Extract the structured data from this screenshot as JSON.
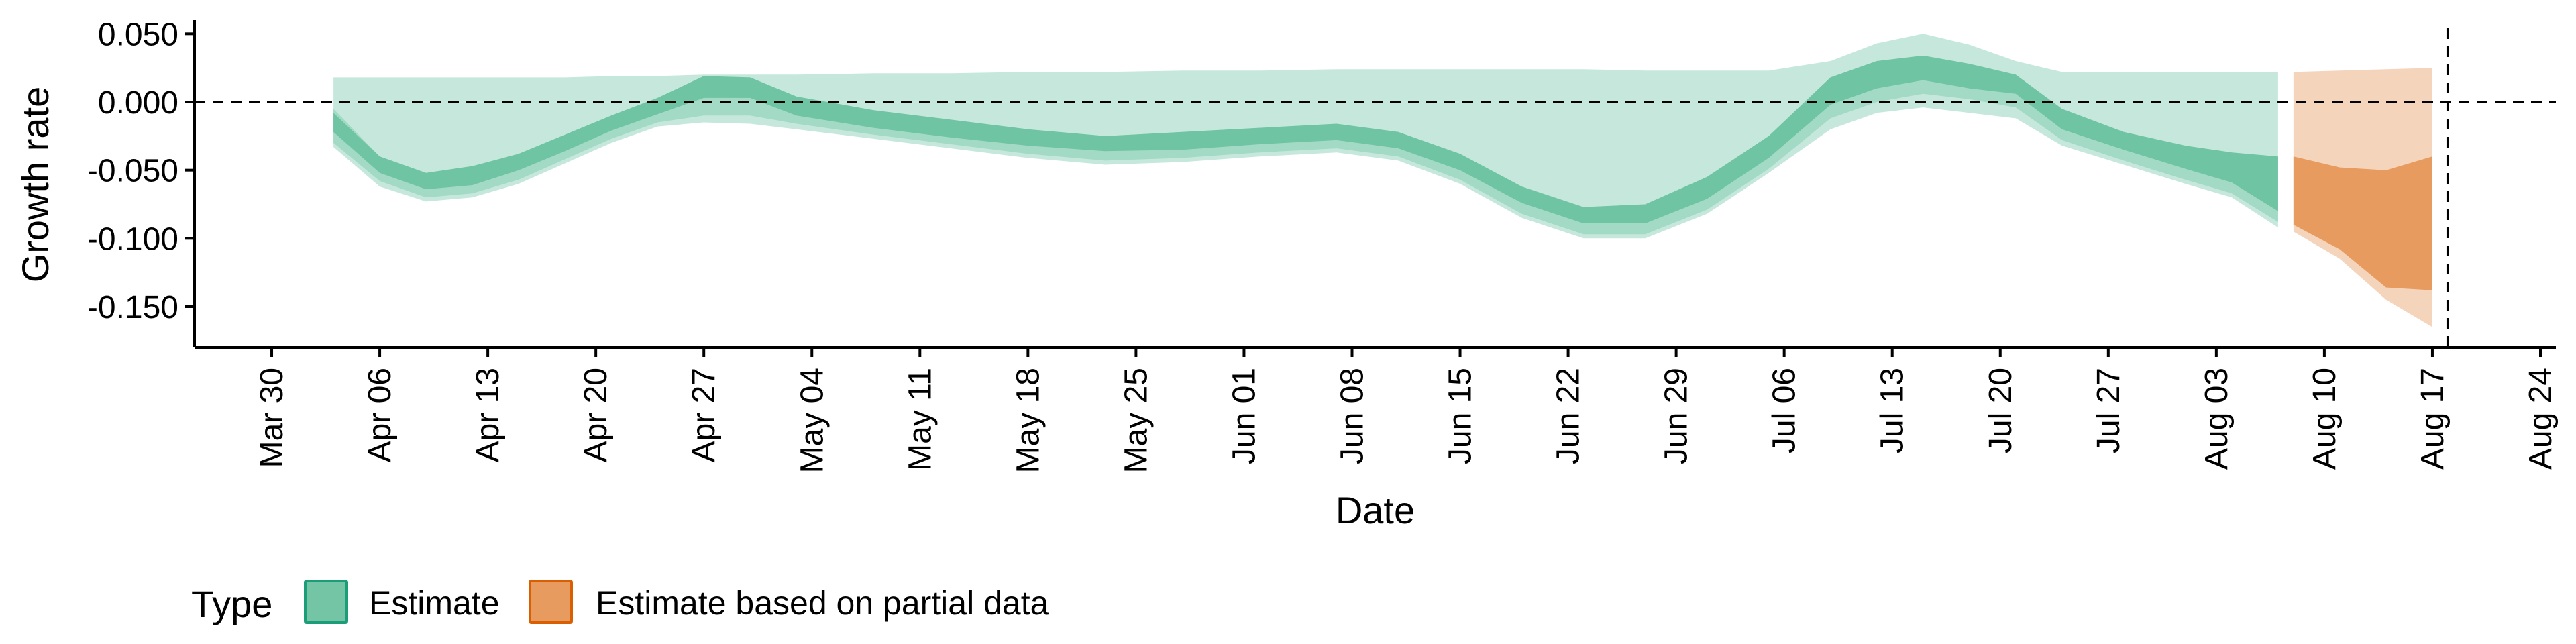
{
  "chart_data": {
    "type": "area",
    "title": "",
    "xlabel": "Date",
    "ylabel": "Growth rate",
    "ylim": [
      -0.18,
      0.06
    ],
    "xlim": [
      "2020-03-25",
      "2020-08-25"
    ],
    "grid": false,
    "x_ticks": [
      {
        "date": "2020-03-30",
        "label": "Mar 30"
      },
      {
        "date": "2020-04-06",
        "label": "Apr 06"
      },
      {
        "date": "2020-04-13",
        "label": "Apr 13"
      },
      {
        "date": "2020-04-20",
        "label": "Apr 20"
      },
      {
        "date": "2020-04-27",
        "label": "Apr 27"
      },
      {
        "date": "2020-05-04",
        "label": "May 04"
      },
      {
        "date": "2020-05-11",
        "label": "May 11"
      },
      {
        "date": "2020-05-18",
        "label": "May 18"
      },
      {
        "date": "2020-05-25",
        "label": "May 25"
      },
      {
        "date": "2020-06-01",
        "label": "Jun 01"
      },
      {
        "date": "2020-06-08",
        "label": "Jun 08"
      },
      {
        "date": "2020-06-15",
        "label": "Jun 15"
      },
      {
        "date": "2020-06-22",
        "label": "Jun 22"
      },
      {
        "date": "2020-06-29",
        "label": "Jun 29"
      },
      {
        "date": "2020-07-06",
        "label": "Jul 06"
      },
      {
        "date": "2020-07-13",
        "label": "Jul 13"
      },
      {
        "date": "2020-07-20",
        "label": "Jul 20"
      },
      {
        "date": "2020-07-27",
        "label": "Jul 27"
      },
      {
        "date": "2020-08-03",
        "label": "Aug 03"
      },
      {
        "date": "2020-08-10",
        "label": "Aug 10"
      },
      {
        "date": "2020-08-17",
        "label": "Aug 17"
      },
      {
        "date": "2020-08-24",
        "label": "Aug 24"
      }
    ],
    "y_ticks": [
      {
        "value": 0.05,
        "label": "0.050"
      },
      {
        "value": 0.0,
        "label": "0.000"
      },
      {
        "value": -0.05,
        "label": "-0.050"
      },
      {
        "value": -0.1,
        "label": "-0.100"
      },
      {
        "value": -0.15,
        "label": "-0.150"
      }
    ],
    "reference_lines": {
      "horizontal_y": 0.0,
      "vertical_date": "2020-08-18",
      "style": "dashed"
    },
    "legend": {
      "title": "Type",
      "position": "bottom-left",
      "entries": [
        {
          "label": "Estimate",
          "fill": "#74c5a5",
          "border": "#1b9e77"
        },
        {
          "label": "Estimate based on partial data",
          "fill": "#e79b5e",
          "border": "#d95f02"
        }
      ]
    },
    "series": [
      {
        "name": "Estimate",
        "colors": {
          "inner": "#6ec4a3",
          "mid": "#a3dac5",
          "outer": "#c6e8dc"
        },
        "points": [
          {
            "x": "2020-04-03",
            "outer": [
              -0.033,
              0.018
            ],
            "mid": [
              -0.03,
              -0.005
            ],
            "inner": [
              -0.022,
              -0.008
            ]
          },
          {
            "x": "2020-04-06",
            "outer": [
              -0.062,
              0.018
            ],
            "mid": [
              -0.058,
              -0.04
            ],
            "inner": [
              -0.052,
              -0.04
            ]
          },
          {
            "x": "2020-04-09",
            "outer": [
              -0.073,
              0.018
            ],
            "mid": [
              -0.07,
              -0.052
            ],
            "inner": [
              -0.064,
              -0.052
            ]
          },
          {
            "x": "2020-04-12",
            "outer": [
              -0.07,
              0.018
            ],
            "mid": [
              -0.067,
              -0.047
            ],
            "inner": [
              -0.061,
              -0.047
            ]
          },
          {
            "x": "2020-04-15",
            "outer": [
              -0.06,
              0.018
            ],
            "mid": [
              -0.057,
              -0.038
            ],
            "inner": [
              -0.05,
              -0.038
            ]
          },
          {
            "x": "2020-04-18",
            "outer": [
              -0.045,
              0.018
            ],
            "mid": [
              -0.042,
              -0.024
            ],
            "inner": [
              -0.036,
              -0.024
            ]
          },
          {
            "x": "2020-04-21",
            "outer": [
              -0.03,
              0.019
            ],
            "mid": [
              -0.027,
              -0.01
            ],
            "inner": [
              -0.021,
              -0.01
            ]
          },
          {
            "x": "2020-04-24",
            "outer": [
              -0.018,
              0.019
            ],
            "mid": [
              -0.015,
              0.003
            ],
            "inner": [
              -0.009,
              0.003
            ]
          },
          {
            "x": "2020-04-27",
            "outer": [
              -0.015,
              0.02
            ],
            "mid": [
              -0.01,
              0.019
            ],
            "inner": [
              0.003,
              0.019
            ]
          },
          {
            "x": "2020-04-30",
            "outer": [
              -0.016,
              0.02
            ],
            "mid": [
              -0.01,
              0.018
            ],
            "inner": [
              0.003,
              0.018
            ]
          },
          {
            "x": "2020-05-03",
            "outer": [
              -0.02,
              0.02
            ],
            "mid": [
              -0.016,
              0.004
            ],
            "inner": [
              -0.01,
              0.004
            ]
          },
          {
            "x": "2020-05-08",
            "outer": [
              -0.027,
              0.021
            ],
            "mid": [
              -0.024,
              -0.006
            ],
            "inner": [
              -0.019,
              -0.006
            ]
          },
          {
            "x": "2020-05-13",
            "outer": [
              -0.034,
              0.021
            ],
            "mid": [
              -0.031,
              -0.013
            ],
            "inner": [
              -0.026,
              -0.013
            ]
          },
          {
            "x": "2020-05-18",
            "outer": [
              -0.041,
              0.022
            ],
            "mid": [
              -0.038,
              -0.02
            ],
            "inner": [
              -0.032,
              -0.02
            ]
          },
          {
            "x": "2020-05-23",
            "outer": [
              -0.046,
              0.022
            ],
            "mid": [
              -0.043,
              -0.025
            ],
            "inner": [
              -0.036,
              -0.025
            ]
          },
          {
            "x": "2020-05-28",
            "outer": [
              -0.044,
              0.023
            ],
            "mid": [
              -0.041,
              -0.022
            ],
            "inner": [
              -0.035,
              -0.022
            ]
          },
          {
            "x": "2020-06-02",
            "outer": [
              -0.04,
              0.023
            ],
            "mid": [
              -0.037,
              -0.019
            ],
            "inner": [
              -0.031,
              -0.019
            ]
          },
          {
            "x": "2020-06-07",
            "outer": [
              -0.037,
              0.024
            ],
            "mid": [
              -0.034,
              -0.016
            ],
            "inner": [
              -0.028,
              -0.016
            ]
          },
          {
            "x": "2020-06-11",
            "outer": [
              -0.043,
              0.024
            ],
            "mid": [
              -0.04,
              -0.022
            ],
            "inner": [
              -0.034,
              -0.022
            ]
          },
          {
            "x": "2020-06-15",
            "outer": [
              -0.06,
              0.024
            ],
            "mid": [
              -0.057,
              -0.038
            ],
            "inner": [
              -0.05,
              -0.038
            ]
          },
          {
            "x": "2020-06-19",
            "outer": [
              -0.085,
              0.024
            ],
            "mid": [
              -0.082,
              -0.062
            ],
            "inner": [
              -0.074,
              -0.062
            ]
          },
          {
            "x": "2020-06-23",
            "outer": [
              -0.1,
              0.024
            ],
            "mid": [
              -0.097,
              -0.077
            ],
            "inner": [
              -0.089,
              -0.077
            ]
          },
          {
            "x": "2020-06-27",
            "outer": [
              -0.1,
              0.023
            ],
            "mid": [
              -0.097,
              -0.075
            ],
            "inner": [
              -0.089,
              -0.075
            ]
          },
          {
            "x": "2020-07-01",
            "outer": [
              -0.082,
              0.023
            ],
            "mid": [
              -0.079,
              -0.055
            ],
            "inner": [
              -0.071,
              -0.055
            ]
          },
          {
            "x": "2020-07-05",
            "outer": [
              -0.052,
              0.023
            ],
            "mid": [
              -0.049,
              -0.025
            ],
            "inner": [
              -0.041,
              -0.025
            ]
          },
          {
            "x": "2020-07-09",
            "outer": [
              -0.02,
              0.03
            ],
            "mid": [
              -0.012,
              0.018
            ],
            "inner": [
              -0.002,
              0.018
            ]
          },
          {
            "x": "2020-07-12",
            "outer": [
              -0.008,
              0.043
            ],
            "mid": [
              0.0,
              0.03
            ],
            "inner": [
              0.01,
              0.03
            ]
          },
          {
            "x": "2020-07-15",
            "outer": [
              -0.004,
              0.05
            ],
            "mid": [
              0.006,
              0.034
            ],
            "inner": [
              0.016,
              0.034
            ]
          },
          {
            "x": "2020-07-18",
            "outer": [
              -0.008,
              0.042
            ],
            "mid": [
              0.002,
              0.028
            ],
            "inner": [
              0.01,
              0.028
            ]
          },
          {
            "x": "2020-07-21",
            "outer": [
              -0.012,
              0.03
            ],
            "mid": [
              -0.004,
              0.02
            ],
            "inner": [
              0.006,
              0.02
            ]
          },
          {
            "x": "2020-07-24",
            "outer": [
              -0.032,
              0.022
            ],
            "mid": [
              -0.028,
              -0.005
            ],
            "inner": [
              -0.02,
              -0.005
            ]
          },
          {
            "x": "2020-07-28",
            "outer": [
              -0.046,
              0.022
            ],
            "mid": [
              -0.043,
              -0.022
            ],
            "inner": [
              -0.035,
              -0.022
            ]
          },
          {
            "x": "2020-08-01",
            "outer": [
              -0.06,
              0.022
            ],
            "mid": [
              -0.057,
              -0.032
            ],
            "inner": [
              -0.049,
              -0.032
            ]
          },
          {
            "x": "2020-08-04",
            "outer": [
              -0.07,
              0.022
            ],
            "mid": [
              -0.067,
              -0.037
            ],
            "inner": [
              -0.059,
              -0.037
            ]
          },
          {
            "x": "2020-08-07",
            "outer": [
              -0.092,
              0.022
            ],
            "mid": [
              -0.088,
              -0.04
            ],
            "inner": [
              -0.08,
              -0.04
            ]
          }
        ]
      },
      {
        "name": "Estimate based on partial data",
        "colors": {
          "inner": "#e79b5e",
          "mid": "#f2c09a",
          "outer": "#f5d4bc"
        },
        "points": [
          {
            "x": "2020-08-08",
            "outer": [
              -0.095,
              0.022
            ],
            "mid": [
              -0.09,
              -0.04
            ],
            "inner": [
              -0.09,
              -0.04
            ]
          },
          {
            "x": "2020-08-11",
            "outer": [
              -0.115,
              0.023
            ],
            "mid": [
              -0.108,
              -0.048
            ],
            "inner": [
              -0.108,
              -0.048
            ]
          },
          {
            "x": "2020-08-14",
            "outer": [
              -0.145,
              0.024
            ],
            "mid": [
              -0.136,
              -0.05
            ],
            "inner": [
              -0.136,
              -0.05
            ]
          },
          {
            "x": "2020-08-17",
            "outer": [
              -0.165,
              0.025
            ],
            "mid": [
              -0.138,
              -0.04
            ],
            "inner": [
              -0.138,
              -0.04
            ]
          }
        ]
      }
    ]
  }
}
